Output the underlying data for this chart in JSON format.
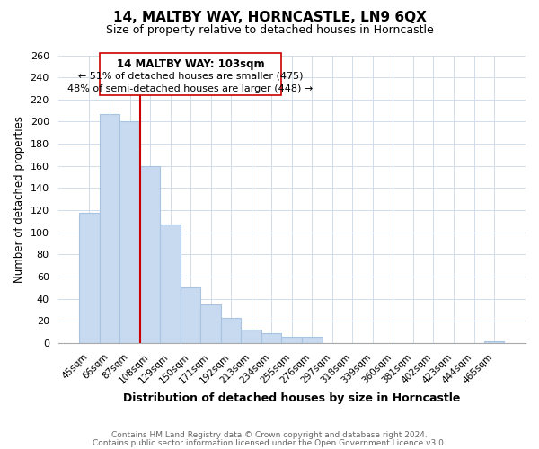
{
  "title_line1": "14, MALTBY WAY, HORNCASTLE, LN9 6QX",
  "title_line2": "Size of property relative to detached houses in Horncastle",
  "xlabel": "Distribution of detached houses by size in Horncastle",
  "ylabel": "Number of detached properties",
  "bar_color": "#c8daf0",
  "bar_edge_color": "#a8c4e0",
  "vline_color": "#cc0000",
  "categories": [
    "45sqm",
    "66sqm",
    "87sqm",
    "108sqm",
    "129sqm",
    "150sqm",
    "171sqm",
    "192sqm",
    "213sqm",
    "234sqm",
    "255sqm",
    "276sqm",
    "297sqm",
    "318sqm",
    "339sqm",
    "360sqm",
    "381sqm",
    "402sqm",
    "423sqm",
    "444sqm",
    "465sqm"
  ],
  "values": [
    118,
    207,
    200,
    160,
    107,
    50,
    35,
    23,
    12,
    9,
    6,
    6,
    0,
    0,
    0,
    0,
    0,
    0,
    0,
    0,
    2
  ],
  "ylim": [
    0,
    260
  ],
  "yticks": [
    0,
    20,
    40,
    60,
    80,
    100,
    120,
    140,
    160,
    180,
    200,
    220,
    240,
    260
  ],
  "annotation_title": "14 MALTBY WAY: 103sqm",
  "annotation_line1": "← 51% of detached houses are smaller (475)",
  "annotation_line2": "48% of semi-detached houses are larger (448) →",
  "footer_line1": "Contains HM Land Registry data © Crown copyright and database right 2024.",
  "footer_line2": "Contains public sector information licensed under the Open Government Licence v3.0.",
  "grid_color": "#d0dce8",
  "background_color": "#ffffff",
  "vline_index": 3
}
